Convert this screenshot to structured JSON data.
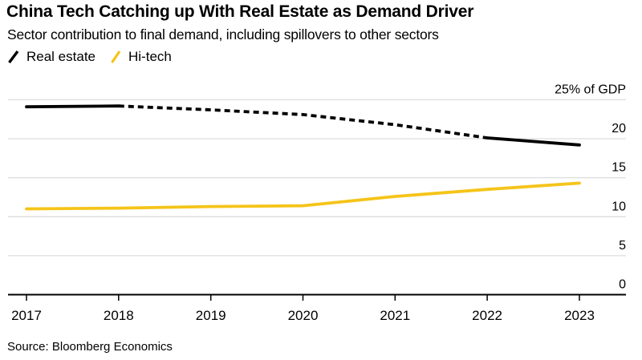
{
  "header": {
    "title": "China Tech Catching up With Real Estate as Demand Driver",
    "subtitle": "Sector contribution to final demand, including spillovers to other sectors"
  },
  "legend": {
    "items": [
      {
        "label": "Real estate",
        "color": "#000000",
        "icon": "slash-swatch"
      },
      {
        "label": "Hi-tech",
        "color": "#F5C419",
        "icon": "slash-swatch"
      }
    ]
  },
  "source": "Source: Bloomberg Economics",
  "colors": {
    "real_estate_line": "#000000",
    "hi_tech_line": "#F5C419",
    "gridline": "#DDDDDD",
    "axis": "#000000",
    "background": "#FFFFFF"
  },
  "chart_data": {
    "type": "line",
    "title": "China Tech Catching up With Real Estate as Demand Driver",
    "subtitle": "Sector contribution to final demand, including spillovers to other sectors",
    "x": [
      "2017",
      "2018",
      "2019",
      "2020",
      "2021",
      "2022",
      "2023"
    ],
    "series": [
      {
        "name": "Real estate",
        "color": "#000000",
        "values": [
          24.1,
          24.2,
          23.7,
          23.1,
          21.8,
          20.1,
          19.2
        ],
        "segments": [
          {
            "from": "2017",
            "to": "2018",
            "style": "solid"
          },
          {
            "from": "2018",
            "to": "2022",
            "style": "dashed"
          },
          {
            "from": "2022",
            "to": "2023",
            "style": "solid"
          }
        ]
      },
      {
        "name": "Hi-tech",
        "color": "#F5C419",
        "values": [
          11.0,
          11.1,
          11.3,
          11.4,
          12.6,
          13.5,
          14.3
        ],
        "segments": [
          {
            "from": "2017",
            "to": "2023",
            "style": "solid"
          }
        ]
      }
    ],
    "ylabel": "25% of GDP",
    "yticks": [
      20,
      15,
      10,
      5,
      0
    ],
    "ylim": [
      0,
      25
    ],
    "grid": true,
    "legend_position": "top-left",
    "source": "Source: Bloomberg Economics"
  }
}
